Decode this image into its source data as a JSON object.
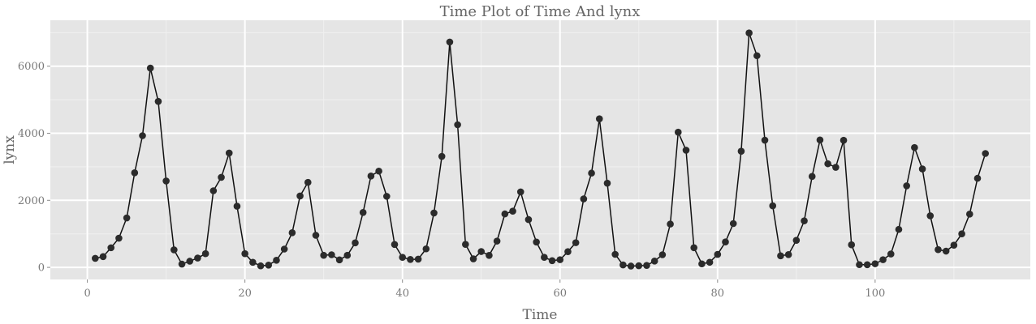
{
  "chart_data": {
    "type": "line",
    "title": "Time Plot of Time And lynx",
    "xlabel": "Time",
    "ylabel": "lynx",
    "xlim": [
      -4.7,
      119.7
    ],
    "ylim": [
      -360,
      7370
    ],
    "x_ticks": [
      0,
      20,
      40,
      60,
      80,
      100
    ],
    "y_ticks": [
      0,
      2000,
      4000,
      6000
    ],
    "x_tick_labels": [
      "0",
      "20",
      "40",
      "60",
      "80",
      "100"
    ],
    "y_tick_labels": [
      "0",
      "2000",
      "4000",
      "6000"
    ],
    "grid": true,
    "markers": true,
    "series": [
      {
        "x": [
          1,
          2,
          3,
          4,
          5,
          6,
          7,
          8,
          9,
          10,
          11,
          12,
          13,
          14,
          15,
          16,
          17,
          18,
          19,
          20,
          21,
          22,
          23,
          24,
          25,
          26,
          27,
          28,
          29,
          30,
          31,
          32,
          33,
          34,
          35,
          36,
          37,
          38,
          39,
          40,
          41,
          42,
          43,
          44,
          45,
          46,
          47,
          48,
          49,
          50,
          51,
          52,
          53,
          54,
          55,
          56,
          57,
          58,
          59,
          60,
          61,
          62,
          63,
          64,
          65,
          66,
          67,
          68,
          69,
          70,
          71,
          72,
          73,
          74,
          75,
          76,
          77,
          78,
          79,
          80,
          81,
          82,
          83,
          84,
          85,
          86,
          87,
          88,
          89,
          90,
          91,
          92,
          93,
          94,
          95,
          96,
          97,
          98,
          99,
          100,
          101,
          102,
          103,
          104,
          105,
          106,
          107,
          108,
          109,
          110,
          111,
          112,
          113,
          114
        ],
        "values": [
          269,
          321,
          585,
          871,
          1475,
          2821,
          3928,
          5943,
          4950,
          2577,
          523,
          98,
          184,
          279,
          409,
          2285,
          2685,
          3409,
          1824,
          409,
          151,
          45,
          68,
          213,
          546,
          1033,
          2129,
          2536,
          957,
          361,
          377,
          225,
          360,
          731,
          1638,
          2725,
          2871,
          2119,
          684,
          299,
          236,
          245,
          552,
          1623,
          3311,
          6721,
          4254,
          687,
          255,
          473,
          358,
          784,
          1594,
          1676,
          2251,
          1426,
          756,
          299,
          201,
          229,
          469,
          736,
          2042,
          2811,
          4431,
          2511,
          389,
          73,
          39,
          49,
          59,
          188,
          377,
          1292,
          4031,
          3495,
          587,
          105,
          153,
          387,
          758,
          1307,
          3465,
          6991,
          6313,
          3794,
          1836,
          345,
          382,
          808,
          1388,
          2713,
          3800,
          3091,
          2985,
          3790,
          674,
          81,
          80,
          108,
          229,
          399,
          1132,
          2432,
          3574,
          2935,
          1537,
          529,
          485,
          662,
          1000,
          1590,
          2657,
          3396
        ]
      }
    ],
    "colors": {
      "panel": "#e5e5e5",
      "grid_major": "#ffffff",
      "grid_minor": "#f0f0f0",
      "line": "#111111",
      "point": "#2b2b2b"
    }
  }
}
